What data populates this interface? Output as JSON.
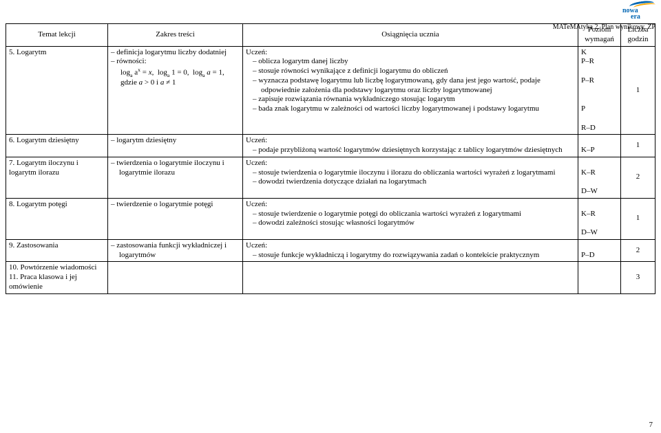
{
  "header": {
    "logo_top": "nowa",
    "logo_bottom": "era",
    "doc_title": "MATeMAtyka 2. Plan wynikowy. ZP"
  },
  "columns": {
    "c1": "Temat lekcji",
    "c2": "Zakres treści",
    "c3": "Osiągnięcia ucznia",
    "c4a": "Poziom",
    "c4b": "wymagań",
    "c5a": "Liczba",
    "c5b": "godzin"
  },
  "rows": [
    {
      "topic": "5. Logarytm",
      "scope": {
        "items": [
          "definicja logarytmu liczby dodatniej",
          "równości:"
        ],
        "formula": "logₐ aˣ = x,  logₐ 1 = 0,  logₐ a = 1,",
        "formula2": "gdzie a > 0 i a ≠ 1"
      },
      "ach_head": "Uczeń:",
      "ach": [
        "oblicza logarytm danej liczby",
        "stosuje równości wynikające z definicji logarytmu do obliczeń",
        "wyznacza podstawę logarytmu lub liczbę logarytmowaną, gdy dana jest jego wartość, podaje odpowiednie założenia dla podstawy logarytmu oraz liczby logarytmowanej",
        "zapisuje rozwiązania równania wykładniczego stosując logarytm",
        "bada znak logarytmu w zależności od wartości liczby logarytmowanej i podstawy logarytmu"
      ],
      "level": [
        "K",
        "P–R",
        "",
        "P–R",
        "",
        "",
        "P",
        "",
        "R–D"
      ],
      "hours": "1"
    },
    {
      "topic": "6. Logarytm dziesiętny",
      "scope": {
        "items": [
          "logarytm dziesiętny"
        ]
      },
      "ach_head": "Uczeń:",
      "ach": [
        "podaje przybliżoną wartość logarytmów dziesiętnych korzystając z tablicy logarytmów dziesiętnych"
      ],
      "level": [
        "",
        "K–P"
      ],
      "hours": "1"
    },
    {
      "topic": "7. Logarytm iloczynu i logarytm ilorazu",
      "scope": {
        "items": [
          "twierdzenia o logarytmie iloczynu i logarytmie ilorazu"
        ]
      },
      "ach_head": "Uczeń:",
      "ach": [
        "stosuje twierdzenia o logarytmie iloczynu i ilorazu do obliczania wartości wyrażeń z logarytmami",
        "dowodzi twierdzenia dotyczące działań na logarytmach"
      ],
      "level": [
        "",
        "K–R",
        "",
        "D–W"
      ],
      "hours": "2"
    },
    {
      "topic": "8. Logarytm potęgi",
      "scope": {
        "items": [
          "twierdzenie o logarytmie potęgi"
        ]
      },
      "ach_head": "Uczeń:",
      "ach": [
        "stosuje twierdzenie o logarytmie potęgi do obliczania wartości wyrażeń z logarytmami",
        "dowodzi zależności stosując własności logarytmów"
      ],
      "level": [
        "",
        "K–R",
        "",
        "D–W"
      ],
      "hours": "1"
    },
    {
      "topic": "9. Zastosowania",
      "scope": {
        "items": [
          "zastosowania funkcji wykładniczej i logarytmów"
        ]
      },
      "ach_head": "Uczeń:",
      "ach": [
        "stosuje funkcje wykładniczą i logarytmy do rozwiązywania zadań o kontekście praktycznym"
      ],
      "level": [
        "",
        "P–D"
      ],
      "hours": "2"
    },
    {
      "topic": "10. Powtórzenie wiadomości\n11. Praca klasowa i jej omówienie",
      "scope": {
        "items": []
      },
      "ach_head": "",
      "ach": [],
      "level": [
        ""
      ],
      "hours": "3"
    }
  ],
  "page_number": "7"
}
